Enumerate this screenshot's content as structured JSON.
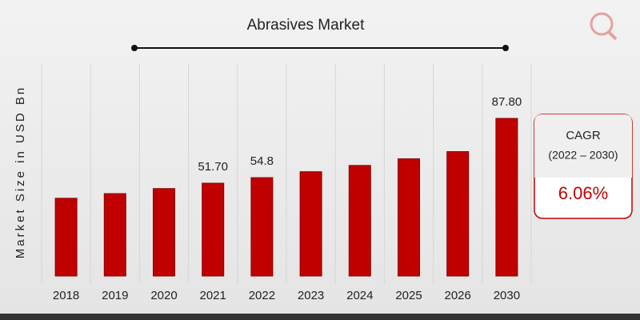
{
  "chart_data": {
    "type": "bar",
    "title": "Abrasives Market",
    "y_label": "Market Size in USD Bn",
    "categories": [
      "2018",
      "2019",
      "2020",
      "2021",
      "2022",
      "2023",
      "2024",
      "2025",
      "2026",
      "2030"
    ],
    "values": [
      43.3,
      45.9,
      48.7,
      51.7,
      54.8,
      58.1,
      61.6,
      65.3,
      69.3,
      87.8
    ],
    "value_labels": [
      null,
      null,
      null,
      "51.70",
      "54.8",
      null,
      null,
      null,
      null,
      "87.80"
    ],
    "color": "#c00000",
    "cagr": {
      "title": "CAGR",
      "period": "(2022 – 2030)",
      "value": "6.06%"
    }
  }
}
